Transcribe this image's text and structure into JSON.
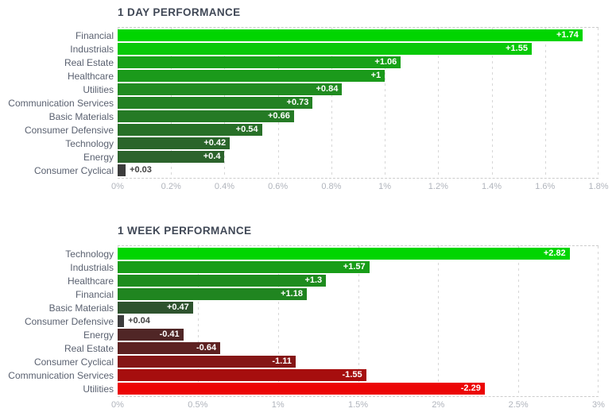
{
  "colors": {
    "title_text": "#404856",
    "category_text": "#5a6170",
    "tick_text": "#b0b4bc",
    "gridline": "#d7d7d7",
    "plot_border_dashed": "#cccccc",
    "bar_value_text_inside": "#ffffff",
    "bar_value_text_outside": "#414141",
    "positive_max": "#01d501",
    "near_zero": "#3c3c3c",
    "negative_max": "#ec0505"
  },
  "chart_data": [
    {
      "type": "bar",
      "orientation": "horizontal",
      "title": "1 DAY PERFORMANCE",
      "categories": [
        "Financial",
        "Industrials",
        "Real Estate",
        "Healthcare",
        "Utilities",
        "Communication Services",
        "Basic Materials",
        "Consumer Defensive",
        "Technology",
        "Energy",
        "Consumer Cyclical"
      ],
      "values": [
        1.74,
        1.55,
        1.06,
        1.0,
        0.84,
        0.73,
        0.66,
        0.54,
        0.42,
        0.4,
        0.03
      ],
      "value_labels": [
        "+1.74",
        "+1.55",
        "+1.06",
        "+1",
        "+0.84",
        "+0.73",
        "+0.66",
        "+0.54",
        "+0.42",
        "+0.4",
        "+0.03"
      ],
      "bar_colors": [
        "#01d501",
        "#09c909",
        "#18a118",
        "#1b9a1b",
        "#208b20",
        "#238123",
        "#257a25",
        "#287028",
        "#2b652b",
        "#2c632c",
        "#3c3c3c"
      ],
      "xlabel": "",
      "ylabel": "",
      "xlim": [
        0,
        1.8
      ],
      "xticks": [
        "0%",
        "0.2%",
        "0.4%",
        "0.6%",
        "0.8%",
        "1%",
        "1.2%",
        "1.4%",
        "1.6%",
        "1.8%"
      ],
      "xtick_values": [
        0,
        0.2,
        0.4,
        0.6,
        0.8,
        1,
        1.2,
        1.4,
        1.6,
        1.8
      ],
      "grid": "dashed-vertical",
      "legend": "none",
      "note": "bars sorted descending, colored by magnitude: bright green high to dark gray near zero"
    },
    {
      "type": "bar",
      "orientation": "horizontal",
      "title": "1 WEEK PERFORMANCE",
      "categories": [
        "Technology",
        "Industrials",
        "Healthcare",
        "Financial",
        "Basic Materials",
        "Consumer Defensive",
        "Energy",
        "Real Estate",
        "Consumer Cyclical",
        "Communication Services",
        "Utilities"
      ],
      "values": [
        2.82,
        1.57,
        1.3,
        1.18,
        0.47,
        0.04,
        -0.41,
        -0.64,
        -1.11,
        -1.55,
        -2.29
      ],
      "value_labels": [
        "+2.82",
        "+1.57",
        "+1.3",
        "+1.18",
        "+0.47",
        "+0.04",
        "-0.41",
        "-0.64",
        "-1.11",
        "-1.55",
        "-2.29"
      ],
      "bar_colors": [
        "#01d501",
        "#189d18",
        "#1e8c1e",
        "#208520",
        "#2e532e",
        "#3c3c3c",
        "#502626",
        "#5d2121",
        "#851616",
        "#a60e0e",
        "#ec0505"
      ],
      "xlabel": "",
      "ylabel": "",
      "xlim": [
        0,
        3
      ],
      "xticks": [
        "0%",
        "0.5%",
        "1%",
        "1.5%",
        "2%",
        "2.5%",
        "3%"
      ],
      "xtick_values": [
        0,
        0.5,
        1,
        1.5,
        2,
        2.5,
        3
      ],
      "grid": "dashed-vertical",
      "legend": "none",
      "note": "negative values plotted by absolute length in red shades, bright red at most negative"
    }
  ]
}
